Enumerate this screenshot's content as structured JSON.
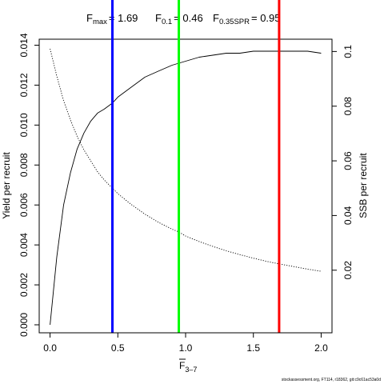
{
  "chart_data": {
    "type": "line",
    "title": {
      "fmax_label": "F",
      "fmax_sub": "max",
      "fmax_value": "= 1.69",
      "f01_label": "F",
      "f01_sub": "0.1",
      "f01_value": "= 0.46",
      "fspr_label": "F",
      "fspr_sub": "0.35SPR",
      "fspr_value": "= 0.95"
    },
    "xlabel": {
      "main": "F",
      "sub": "3–7"
    },
    "ylabel_left": "Yield per recruit",
    "ylabel_right": "SSB per recruit",
    "xlim": [
      -0.08,
      2.08
    ],
    "ylim_left": [
      -0.0004,
      0.0143
    ],
    "ylim_right": [
      -0.0029,
      0.1045
    ],
    "x_ticks": [
      0,
      0.5,
      1,
      1.5,
      2
    ],
    "x_tick_labels": [
      "0.0",
      "0.5",
      "1.0",
      "1.5",
      "2.0"
    ],
    "y_left_ticks": [
      0,
      0.002,
      0.004,
      0.006,
      0.008,
      0.01,
      0.012,
      0.014
    ],
    "y_left_tick_labels": [
      "0.000",
      "0.002",
      "0.004",
      "0.006",
      "0.008",
      "0.010",
      "0.012",
      "0.014"
    ],
    "y_right_ticks": [
      0.02,
      0.04,
      0.06,
      0.08,
      0.1
    ],
    "y_right_tick_labels": [
      "0.02",
      "0.04",
      "0.06",
      "0.08",
      "0.1"
    ],
    "series": [
      {
        "style": "solid",
        "axis": "left",
        "color": "#000000",
        "x": [
          0,
          0.05,
          0.1,
          0.15,
          0.2,
          0.25,
          0.3,
          0.35,
          0.4,
          0.46,
          0.5,
          0.6,
          0.7,
          0.8,
          0.9,
          1.0,
          1.1,
          1.2,
          1.3,
          1.4,
          1.5,
          1.6,
          1.69,
          1.8,
          1.9,
          2.0
        ],
        "y": [
          0,
          0.0034,
          0.006,
          0.0076,
          0.0088,
          0.0096,
          0.0102,
          0.0106,
          0.0108,
          0.0111,
          0.0114,
          0.0119,
          0.0124,
          0.0127,
          0.013,
          0.0132,
          0.0134,
          0.0135,
          0.0136,
          0.0136,
          0.0137,
          0.0137,
          0.0137,
          0.0137,
          0.0137,
          0.0136
        ]
      },
      {
        "style": "dotted",
        "axis": "right",
        "color": "#000000",
        "x": [
          0,
          0.05,
          0.1,
          0.15,
          0.2,
          0.25,
          0.3,
          0.35,
          0.4,
          0.46,
          0.5,
          0.6,
          0.7,
          0.8,
          0.9,
          0.95,
          1.0,
          1.1,
          1.2,
          1.3,
          1.4,
          1.5,
          1.6,
          1.7,
          1.8,
          1.9,
          2.0
        ],
        "y": [
          0.101,
          0.091,
          0.082,
          0.075,
          0.069,
          0.064,
          0.06,
          0.056,
          0.053,
          0.05,
          0.048,
          0.044,
          0.0405,
          0.0375,
          0.035,
          0.034,
          0.0325,
          0.0305,
          0.0287,
          0.0271,
          0.0257,
          0.0244,
          0.0232,
          0.0222,
          0.0213,
          0.0204,
          0.0196
        ]
      }
    ],
    "reference_lines": [
      {
        "x": 0.46,
        "y_left": 0.0111,
        "color": "#0000ff"
      },
      {
        "x": 0.95,
        "y_left": 0.0048,
        "color": "#00ff00"
      },
      {
        "x": 1.69,
        "y_left": 0.0137,
        "color": "#ff0000"
      }
    ],
    "grid": false,
    "footer": "stockassessment.org, FT114, r18362, git:c9c61ac53a0d"
  }
}
